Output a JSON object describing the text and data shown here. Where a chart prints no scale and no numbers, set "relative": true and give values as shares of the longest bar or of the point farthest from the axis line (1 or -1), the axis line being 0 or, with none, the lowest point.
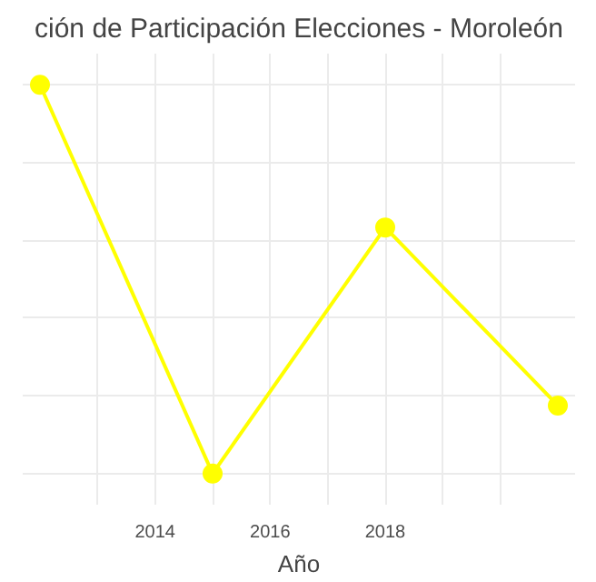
{
  "chart_data": {
    "type": "line",
    "title": "ción de Participación Elecciones - Moroleón",
    "xlabel": "Año",
    "x": [
      2012,
      2015,
      2018,
      2021
    ],
    "series": [
      {
        "color": "#ffff00",
        "values": [
          1,
          0,
          0.633,
          0.175
        ]
      }
    ],
    "relative": true,
    "xlim": [
      2011.7,
      2021.3
    ],
    "xticks": [
      {
        "value": 2013,
        "label": null
      },
      2014,
      {
        "value": 2015,
        "label": null
      },
      2016,
      {
        "value": 2017,
        "label": null
      },
      2018,
      {
        "value": 2019,
        "label": null
      },
      {
        "value": 2020,
        "label": null
      }
    ],
    "grid": true,
    "marker": "circle",
    "line_style": "solid",
    "tick_labels": "x"
  }
}
